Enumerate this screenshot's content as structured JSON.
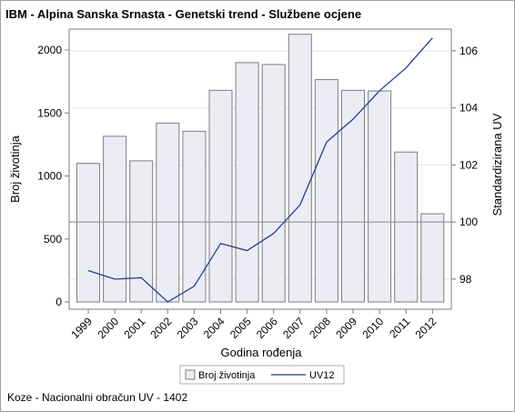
{
  "title": "IBM - Alpina Sanska Srnasta - Genetski trend - Službene ocjene",
  "footnote": "Koze - Nacionalni obračun UV - 1402",
  "colors": {
    "bar_fill": "#ecedf4",
    "bar_stroke": "#7d7d7d",
    "line": "#1f3d93",
    "grid": "#e4e4e4",
    "reference_line": "#9a9a9a",
    "axis": "#7d7d7d"
  },
  "chart_data": {
    "type": "bar",
    "categories": [
      "1999",
      "2000",
      "2001",
      "2002",
      "2003",
      "2004",
      "2005",
      "2006",
      "2007",
      "2008",
      "2009",
      "2010",
      "2011",
      "2012"
    ],
    "xlabel": "Godina rođenja",
    "ylabel": "Broj životinja",
    "y2label": "Standardizirana UV",
    "ylim": [
      0,
      2130
    ],
    "y2lim": [
      97.2,
      106.6
    ],
    "yticks": [
      0,
      500,
      1000,
      1500,
      2000
    ],
    "y2ticks": [
      98,
      100,
      102,
      104,
      106
    ],
    "reference_line_y2": 100,
    "grid": true,
    "legend_position": "bottom",
    "series": [
      {
        "name": "Broj životinja",
        "kind": "bar",
        "axis": "left",
        "values": [
          1100,
          1315,
          1120,
          1420,
          1355,
          1680,
          1900,
          1885,
          2125,
          1765,
          1680,
          1675,
          1190,
          700
        ]
      },
      {
        "name": "UV12",
        "kind": "line",
        "axis": "right",
        "values": [
          98.3,
          98.0,
          98.05,
          97.2,
          97.75,
          99.25,
          99.0,
          99.6,
          100.6,
          102.8,
          103.6,
          104.6,
          105.4,
          106.45
        ]
      }
    ]
  }
}
